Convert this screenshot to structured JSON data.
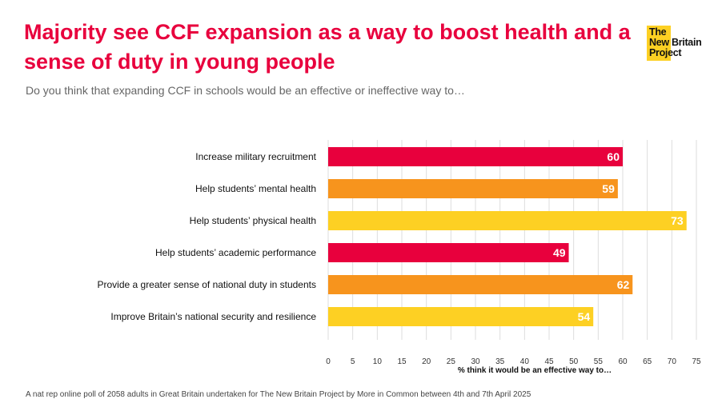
{
  "title": "Majority see CCF expansion as a way to boost health and a sense of duty in young people",
  "subtitle": "Do you think that expanding CCF in schools would be an effective or ineffective way to…",
  "logo": {
    "text_lines": [
      "The",
      "New Britain",
      "Project"
    ]
  },
  "footnote": "A nat rep online poll of 2058 adults in Great Britain undertaken for The New Britain Project by More in Common between 4th and 7th April 2025",
  "colors": {
    "red": "#e8003d",
    "orange": "#f7941d",
    "yellow": "#fdd023"
  },
  "chart_data": {
    "type": "bar",
    "orientation": "horizontal",
    "title": "",
    "xlabel": "% think it would be an effective way to…",
    "ylabel": "",
    "xlim": [
      0,
      75
    ],
    "xticks": [
      0,
      5,
      10,
      15,
      20,
      25,
      30,
      35,
      40,
      45,
      50,
      55,
      60,
      65,
      70,
      75
    ],
    "grid": true,
    "categories": [
      "Increase military recruitment",
      "Help students’ mental health",
      "Help students’ physical health",
      "Help students’ academic performance",
      "Provide a greater sense of national duty in students",
      "Improve Britain’s national security and resilience"
    ],
    "values": [
      60,
      59,
      73,
      49,
      62,
      54
    ],
    "bar_colors": [
      "#e8003d",
      "#f7941d",
      "#fdd023",
      "#e8003d",
      "#f7941d",
      "#fdd023"
    ]
  }
}
